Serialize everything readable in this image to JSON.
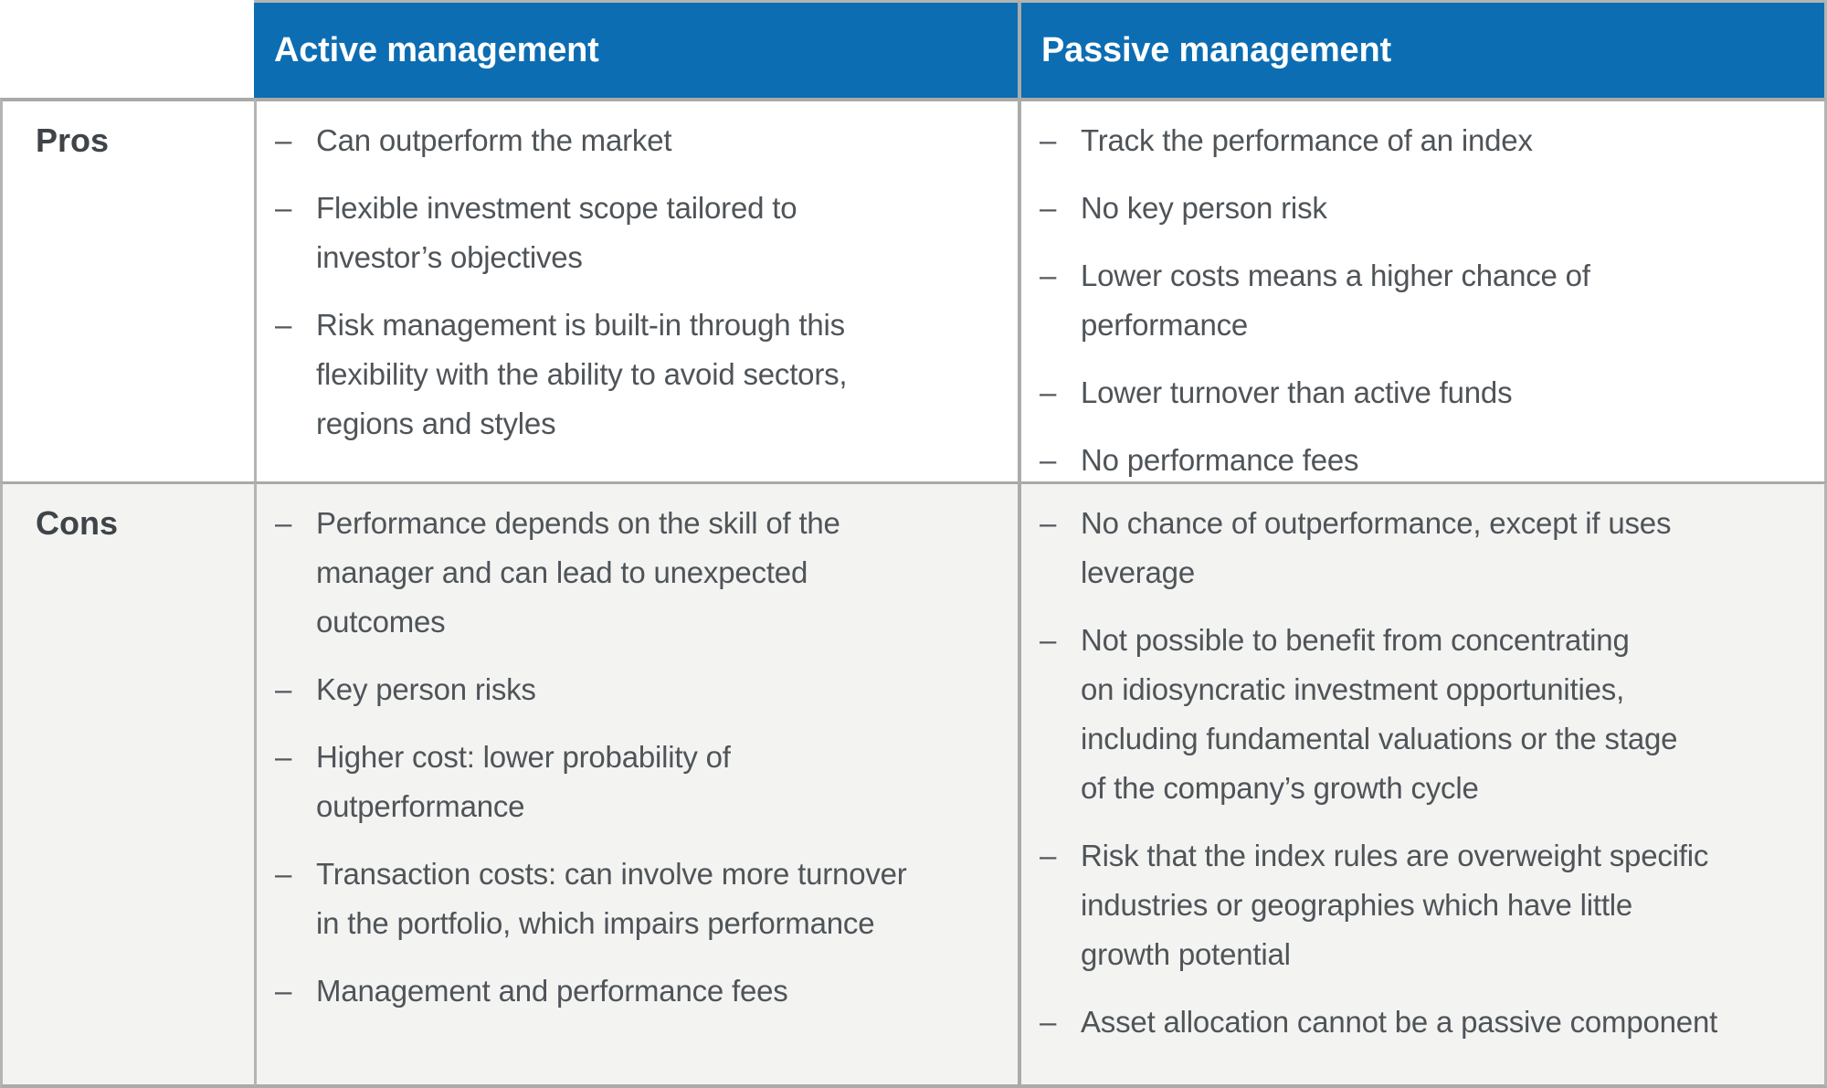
{
  "title": "Active management vs passive management pros and cons comparison table",
  "bullet_glyph": "–",
  "colors": {
    "header_bg": "#0c6db2",
    "header_text": "#ffffff",
    "body_text": "#4f5458",
    "label_text": "#3f4448",
    "pros_row_bg": "#ffffff",
    "cons_row_bg": "#f3f3f2",
    "border_gray": "#b0b2b0"
  },
  "table": {
    "corner_label": "",
    "columns": [
      {
        "key": "active",
        "label": "Active management"
      },
      {
        "key": "passive",
        "label": "Passive management"
      }
    ],
    "rows": [
      {
        "label": "Pros",
        "active": [
          "Can outperform the market",
          "Flexible investment scope tailored to\ninvestor’s objectives",
          "Risk management is built-in through this\nflexibility with the ability to avoid sectors,\nregions and styles"
        ],
        "passive": [
          "Track the performance of an index",
          "No key person risk",
          "Lower costs means a higher chance of\nperformance",
          "Lower turnover than active funds",
          "No performance fees"
        ]
      },
      {
        "label": "Cons",
        "active": [
          "Performance depends on the skill of the\nmanager and can lead to unexpected\noutcomes",
          "Key person risks",
          "Higher cost: lower probability of\noutperformance",
          "Transaction costs: can involve more turnover\nin the portfolio, which impairs performance",
          "Management and performance fees"
        ],
        "passive": [
          "No chance of outperformance, except if uses\nleverage",
          "Not possible to benefit from concentrating\non idiosyncratic investment opportunities,\nincluding fundamental valuations or the stage\nof the company’s growth cycle",
          "Risk that the index rules are overweight specific\nindustries or geographies which have little\ngrowth potential",
          "Asset allocation cannot be a passive component"
        ]
      }
    ]
  }
}
